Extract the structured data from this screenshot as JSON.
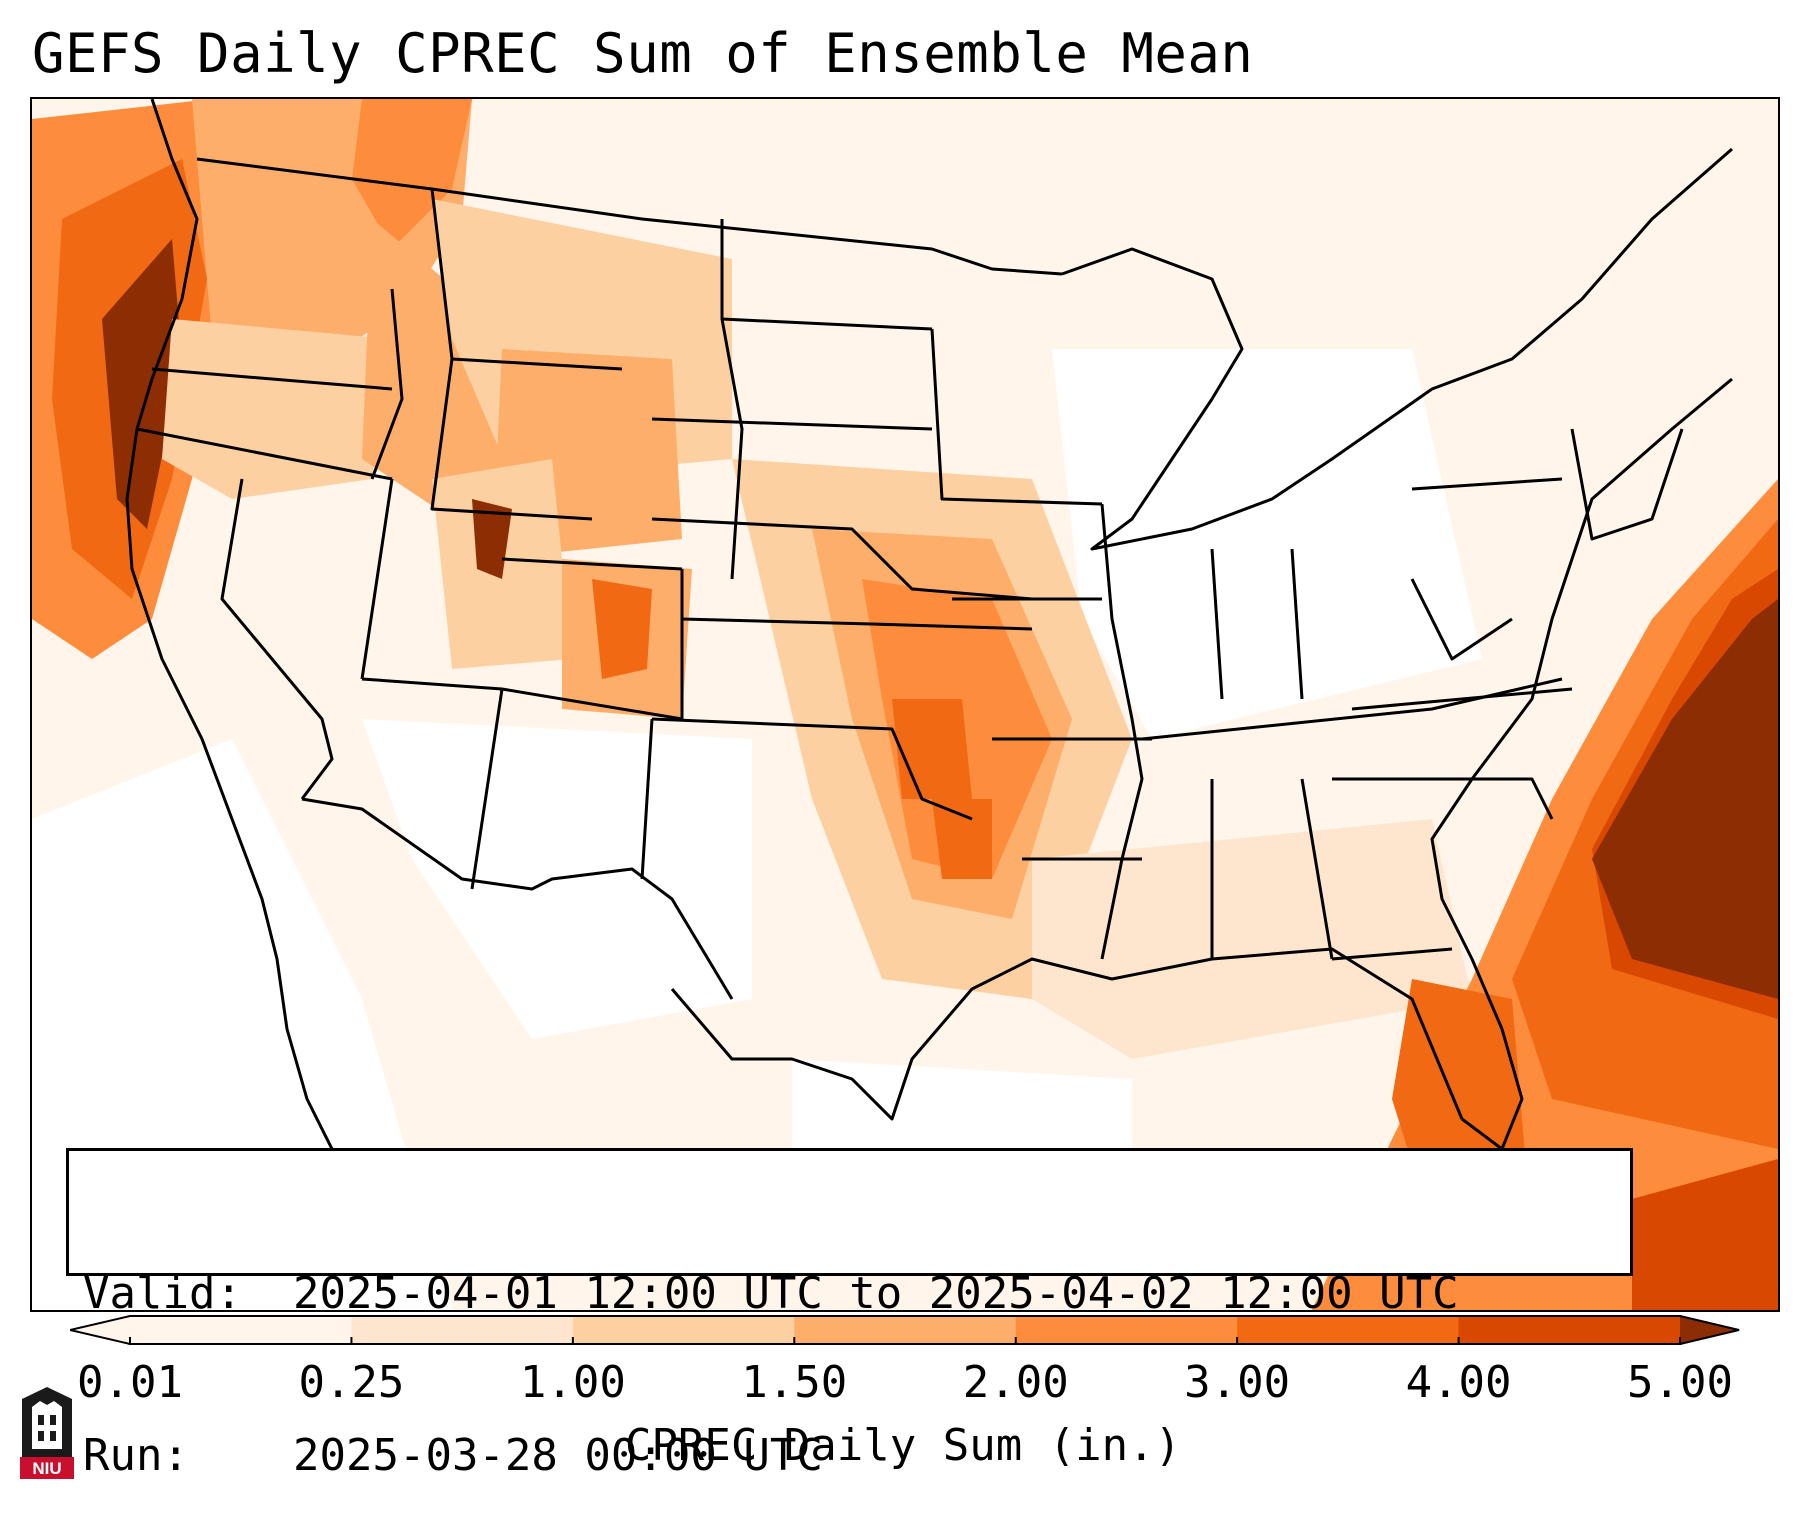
{
  "title": "GEFS Daily CPREC Sum of Ensemble Mean",
  "info": {
    "valid_label": "Valid:",
    "valid_value": "2025-04-01 12:00 UTC to 2025-04-02 12:00 UTC",
    "run_label": "Run:",
    "run_value": "2025-03-28 00:00 UTC"
  },
  "colorbar": {
    "label": "CPREC Daily Sum (in.)",
    "ticks": [
      "0.01",
      "0.25",
      "1.00",
      "1.50",
      "2.00",
      "3.00",
      "4.00",
      "5.00"
    ],
    "colors": [
      "#fff5eb",
      "#fee6ce",
      "#fdd0a2",
      "#fdae6b",
      "#fd8d3c",
      "#f16913",
      "#d94801",
      "#8c2d04"
    ],
    "extend": "both"
  },
  "logo": {
    "text": "NIU",
    "colors": {
      "primary": "#c8102e",
      "dark": "#1a1a1a"
    }
  },
  "map": {
    "domain": "CONUS",
    "variable": "convective precipitation daily sum",
    "colors": {
      "land_lines": "#000000",
      "ocean_background": "#ffffff"
    }
  }
}
